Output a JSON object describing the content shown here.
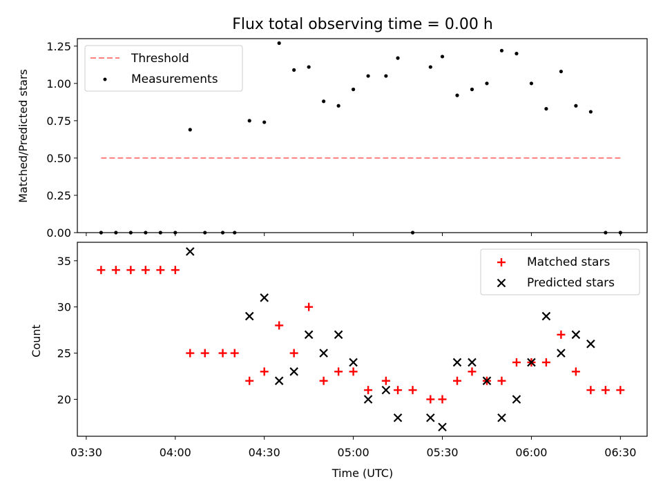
{
  "title": "Flux total observing time = 0.00 h",
  "chart_data": [
    {
      "type": "scatter",
      "ylabel": "Matched/Predicted stars",
      "xlabel": "",
      "xlim": [
        "03:27",
        "06:39"
      ],
      "ylim": [
        0,
        1.3
      ],
      "yticks": [
        "0.00",
        "0.25",
        "0.50",
        "0.75",
        "1.00",
        "1.25"
      ],
      "grid": false,
      "legend": "upper-left",
      "threshold": {
        "name": "Threshold",
        "value": 0.5,
        "x_start": "03:35",
        "x_end": "06:30",
        "color": "#ff7f7f",
        "style": "dashed"
      },
      "series": [
        {
          "name": "Measurements",
          "color": "#000000",
          "points": [
            [
              "03:35",
              0.0
            ],
            [
              "03:40",
              0.0
            ],
            [
              "03:45",
              0.0
            ],
            [
              "03:50",
              0.0
            ],
            [
              "03:55",
              0.0
            ],
            [
              "04:00",
              0.0
            ],
            [
              "04:05",
              0.69
            ],
            [
              "04:10",
              0.0
            ],
            [
              "04:16",
              0.0
            ],
            [
              "04:20",
              0.0
            ],
            [
              "04:25",
              0.75
            ],
            [
              "04:30",
              0.74
            ],
            [
              "04:35",
              1.27
            ],
            [
              "04:40",
              1.09
            ],
            [
              "04:45",
              1.11
            ],
            [
              "04:50",
              0.88
            ],
            [
              "04:55",
              0.85
            ],
            [
              "05:00",
              0.96
            ],
            [
              "05:05",
              1.05
            ],
            [
              "05:11",
              1.05
            ],
            [
              "05:15",
              1.17
            ],
            [
              "05:20",
              0.0
            ],
            [
              "05:26",
              1.11
            ],
            [
              "05:30",
              1.18
            ],
            [
              "05:35",
              0.92
            ],
            [
              "05:40",
              0.96
            ],
            [
              "05:45",
              1.0
            ],
            [
              "05:50",
              1.22
            ],
            [
              "05:55",
              1.2
            ],
            [
              "06:00",
              1.0
            ],
            [
              "06:05",
              0.83
            ],
            [
              "06:10",
              1.08
            ],
            [
              "06:15",
              0.85
            ],
            [
              "06:20",
              0.81
            ],
            [
              "06:25",
              0.0
            ],
            [
              "06:30",
              0.0
            ]
          ]
        }
      ]
    },
    {
      "type": "scatter",
      "ylabel": "Count",
      "xlabel": "Time (UTC)",
      "xlim": [
        "03:27",
        "06:39"
      ],
      "ylim": [
        16,
        37
      ],
      "yticks": [
        "20",
        "25",
        "30",
        "35"
      ],
      "xticks": [
        "03:30",
        "04:00",
        "04:30",
        "05:00",
        "05:30",
        "06:00",
        "06:30"
      ],
      "grid": false,
      "legend": "upper-right",
      "series": [
        {
          "name": "Matched stars",
          "marker": "plus",
          "color": "#ff0000",
          "points": [
            [
              "03:35",
              34
            ],
            [
              "03:40",
              34
            ],
            [
              "03:45",
              34
            ],
            [
              "03:50",
              34
            ],
            [
              "03:55",
              34
            ],
            [
              "04:00",
              34
            ],
            [
              "04:05",
              25
            ],
            [
              "04:10",
              25
            ],
            [
              "04:16",
              25
            ],
            [
              "04:20",
              25
            ],
            [
              "04:25",
              22
            ],
            [
              "04:30",
              23
            ],
            [
              "04:35",
              28
            ],
            [
              "04:40",
              25
            ],
            [
              "04:45",
              30
            ],
            [
              "04:50",
              22
            ],
            [
              "04:55",
              23
            ],
            [
              "05:00",
              23
            ],
            [
              "05:05",
              21
            ],
            [
              "05:11",
              22
            ],
            [
              "05:15",
              21
            ],
            [
              "05:20",
              21
            ],
            [
              "05:26",
              20
            ],
            [
              "05:30",
              20
            ],
            [
              "05:35",
              22
            ],
            [
              "05:40",
              23
            ],
            [
              "05:45",
              22
            ],
            [
              "05:50",
              22
            ],
            [
              "05:55",
              24
            ],
            [
              "06:00",
              24
            ],
            [
              "06:05",
              24
            ],
            [
              "06:10",
              27
            ],
            [
              "06:15",
              23
            ],
            [
              "06:20",
              21
            ],
            [
              "06:25",
              21
            ],
            [
              "06:30",
              21
            ]
          ]
        },
        {
          "name": "Predicted stars",
          "marker": "x",
          "color": "#000000",
          "points": [
            [
              "04:05",
              36
            ],
            [
              "04:25",
              29
            ],
            [
              "04:30",
              31
            ],
            [
              "04:35",
              22
            ],
            [
              "04:40",
              23
            ],
            [
              "04:45",
              27
            ],
            [
              "04:50",
              25
            ],
            [
              "04:55",
              27
            ],
            [
              "05:00",
              24
            ],
            [
              "05:05",
              20
            ],
            [
              "05:11",
              21
            ],
            [
              "05:15",
              18
            ],
            [
              "05:26",
              18
            ],
            [
              "05:30",
              17
            ],
            [
              "05:35",
              24
            ],
            [
              "05:40",
              24
            ],
            [
              "05:45",
              22
            ],
            [
              "05:50",
              18
            ],
            [
              "05:55",
              20
            ],
            [
              "06:00",
              24
            ],
            [
              "06:05",
              29
            ],
            [
              "06:10",
              25
            ],
            [
              "06:15",
              27
            ],
            [
              "06:20",
              26
            ]
          ]
        }
      ]
    }
  ]
}
